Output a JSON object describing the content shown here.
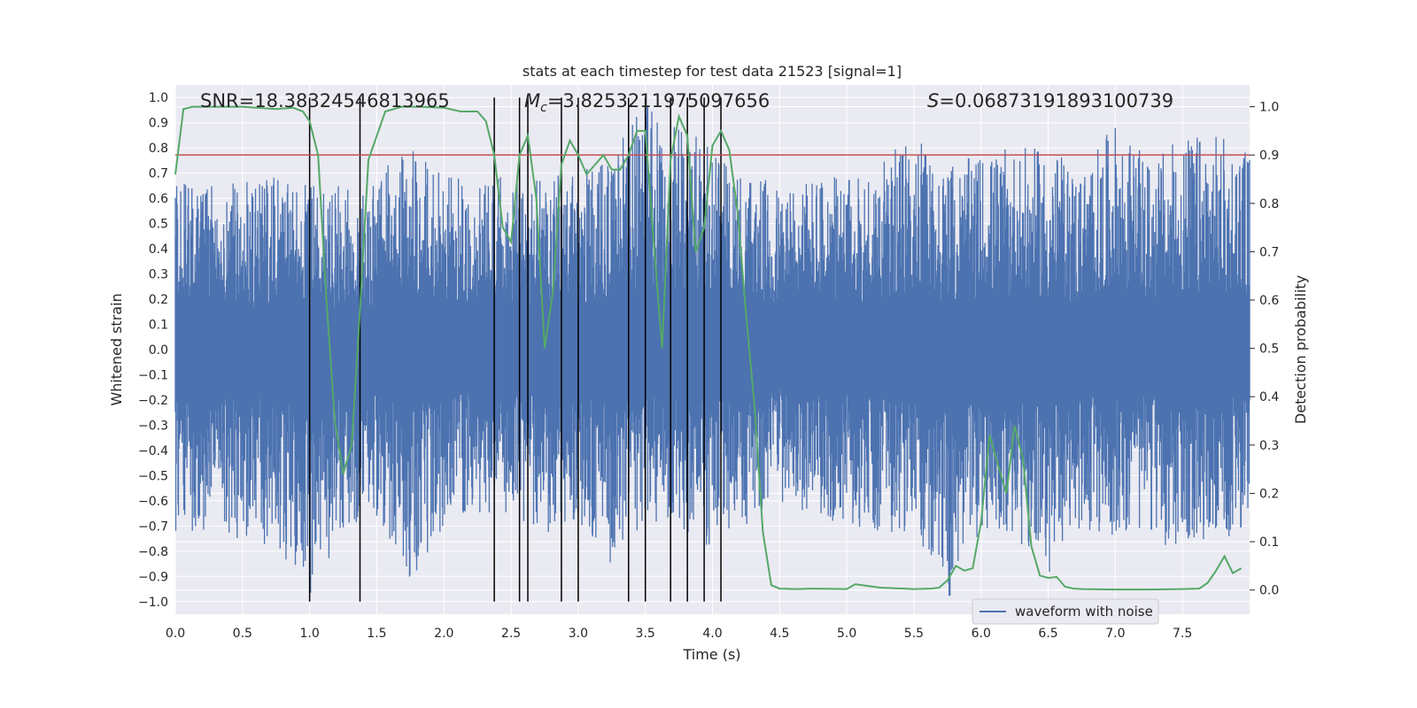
{
  "chart_data": {
    "type": "line",
    "title": "stats at each timestep for test data 21523 [signal=1]",
    "xlabel": "Time (s)",
    "ylabel_left": "Whitened strain",
    "ylabel_right": "Detection probability",
    "xlim": [
      0.0,
      8.0
    ],
    "ylim_left": [
      -1.05,
      1.05
    ],
    "ylim_right": [
      -0.05,
      1.045
    ],
    "x_ticks": [
      "0.0",
      "0.5",
      "1.0",
      "1.5",
      "2.0",
      "2.5",
      "3.0",
      "3.5",
      "4.0",
      "4.5",
      "5.0",
      "5.5",
      "6.0",
      "6.5",
      "7.0",
      "7.5"
    ],
    "y_left_ticks": [
      "1.0",
      "0.9",
      "0.8",
      "0.7",
      "0.6",
      "0.5",
      "0.4",
      "0.3",
      "0.2",
      "0.1",
      "0.0",
      "-0.1",
      "-0.2",
      "-0.3",
      "-0.4",
      "-0.5",
      "-0.6",
      "-0.7",
      "-0.8",
      "-0.9",
      "-1.0"
    ],
    "y_right_ticks": [
      "1.0",
      "0.9",
      "0.8",
      "0.7",
      "0.6",
      "0.5",
      "0.4",
      "0.3",
      "0.2",
      "0.1",
      "0.0"
    ],
    "annotations": {
      "snr": "SNR=18.38324546813965",
      "mc_symbol": "M",
      "mc_subscript": "c",
      "mc_value": "=3.8253211975097656",
      "s_symbol": "S",
      "s_value": "=0.06873191893100739"
    },
    "threshold": {
      "value": 0.9,
      "axis": "right",
      "color": "#c44e52"
    },
    "event_lines_x": [
      1.0,
      1.375,
      2.375,
      2.563,
      2.625,
      2.875,
      3.0,
      3.375,
      3.5,
      3.688,
      3.813,
      3.938,
      4.063
    ],
    "series": [
      {
        "name": "waveform with noise",
        "axis": "left",
        "color": "#4c72b0",
        "envelope_x": [
          0.0,
          0.25,
          0.5,
          0.75,
          1.0,
          1.25,
          1.5,
          1.75,
          2.0,
          2.25,
          2.5,
          2.75,
          3.0,
          3.25,
          3.5,
          3.75,
          4.0,
          4.25,
          4.5,
          4.75,
          5.0,
          5.25,
          5.5,
          5.75,
          6.0,
          6.25,
          6.5,
          6.75,
          7.0,
          7.25,
          7.5,
          7.75,
          8.0
        ],
        "envelope_upper": [
          0.68,
          0.66,
          0.67,
          0.7,
          0.65,
          0.65,
          0.7,
          0.8,
          0.7,
          0.66,
          0.7,
          0.7,
          0.72,
          0.8,
          0.97,
          0.9,
          0.8,
          0.7,
          0.66,
          0.7,
          0.68,
          0.75,
          0.85,
          0.73,
          0.78,
          0.8,
          0.8,
          0.72,
          0.9,
          0.75,
          0.85,
          0.86,
          0.8
        ],
        "envelope_lower": [
          -0.74,
          -0.72,
          -0.76,
          -0.78,
          -0.98,
          -0.72,
          -0.66,
          -0.92,
          -0.7,
          -0.65,
          -0.66,
          -0.73,
          -0.7,
          -0.87,
          -0.68,
          -0.72,
          -0.8,
          -0.7,
          -0.6,
          -0.66,
          -0.7,
          -0.72,
          -0.74,
          -1.0,
          -0.72,
          -0.76,
          -0.9,
          -0.73,
          -0.74,
          -0.72,
          -0.85,
          -0.73,
          -0.78
        ]
      },
      {
        "name": "detection probability",
        "axis": "right",
        "color": "#55a868",
        "x": [
          0.0,
          0.06,
          0.125,
          0.25,
          0.5,
          0.75,
          0.875,
          0.95,
          1.0,
          1.063,
          1.125,
          1.188,
          1.25,
          1.313,
          1.375,
          1.438,
          1.563,
          1.688,
          1.813,
          2.0,
          2.125,
          2.25,
          2.313,
          2.375,
          2.438,
          2.5,
          2.563,
          2.625,
          2.688,
          2.75,
          2.813,
          2.875,
          2.938,
          3.0,
          3.063,
          3.125,
          3.188,
          3.25,
          3.313,
          3.375,
          3.438,
          3.5,
          3.563,
          3.625,
          3.688,
          3.75,
          3.813,
          3.875,
          3.938,
          4.0,
          4.063,
          4.125,
          4.188,
          4.25,
          4.313,
          4.375,
          4.438,
          4.5,
          4.625,
          4.75,
          5.0,
          5.063,
          5.25,
          5.5,
          5.625,
          5.688,
          5.75,
          5.813,
          5.875,
          5.938,
          6.0,
          6.063,
          6.125,
          6.188,
          6.25,
          6.313,
          6.375,
          6.438,
          6.5,
          6.563,
          6.625,
          6.688,
          6.75,
          7.0,
          7.25,
          7.5,
          7.625,
          7.688,
          7.75,
          7.813,
          7.875,
          7.938
        ],
        "y": [
          0.86,
          0.995,
          1.0,
          1.0,
          1.0,
          0.995,
          0.998,
          0.99,
          0.97,
          0.9,
          0.6,
          0.35,
          0.24,
          0.3,
          0.58,
          0.89,
          0.99,
          1.0,
          1.0,
          0.998,
          0.99,
          0.99,
          0.97,
          0.9,
          0.75,
          0.72,
          0.9,
          0.94,
          0.81,
          0.5,
          0.62,
          0.88,
          0.93,
          0.9,
          0.86,
          0.88,
          0.9,
          0.87,
          0.87,
          0.9,
          0.95,
          0.95,
          0.72,
          0.5,
          0.89,
          0.98,
          0.94,
          0.7,
          0.75,
          0.92,
          0.95,
          0.91,
          0.78,
          0.57,
          0.38,
          0.12,
          0.01,
          0.003,
          0.002,
          0.003,
          0.002,
          0.012,
          0.005,
          0.002,
          0.003,
          0.005,
          0.02,
          0.05,
          0.04,
          0.045,
          0.14,
          0.32,
          0.26,
          0.2,
          0.34,
          0.27,
          0.09,
          0.03,
          0.025,
          0.027,
          0.007,
          0.003,
          0.002,
          0.001,
          0.001,
          0.002,
          0.003,
          0.015,
          0.04,
          0.07,
          0.035,
          0.045
        ]
      }
    ],
    "legend": {
      "entries": [
        "waveform with noise"
      ],
      "placement": "lower-right"
    }
  }
}
